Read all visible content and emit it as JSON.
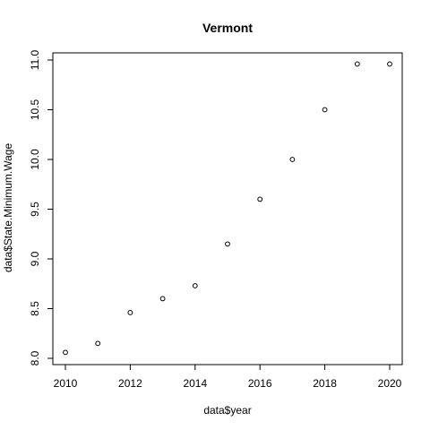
{
  "chart_data": {
    "type": "scatter",
    "title": "Vermont",
    "xlabel": "data$year",
    "ylabel": "data$State.Minimum.Wage",
    "x": [
      2010,
      2011,
      2012,
      2013,
      2014,
      2015,
      2016,
      2017,
      2018,
      2019,
      2020
    ],
    "y": [
      8.06,
      8.15,
      8.46,
      8.6,
      8.73,
      9.15,
      9.6,
      10.0,
      10.5,
      10.96,
      10.96
    ],
    "xlim": [
      2010,
      2020
    ],
    "ylim": [
      8.0,
      11.0
    ],
    "xticks": [
      "2010",
      "2012",
      "2014",
      "2016",
      "2018",
      "2020"
    ],
    "yticks": [
      "8.0",
      "8.5",
      "9.0",
      "9.5",
      "10.0",
      "10.5",
      "11.0"
    ],
    "grid": false,
    "marker_color": "#000000"
  }
}
